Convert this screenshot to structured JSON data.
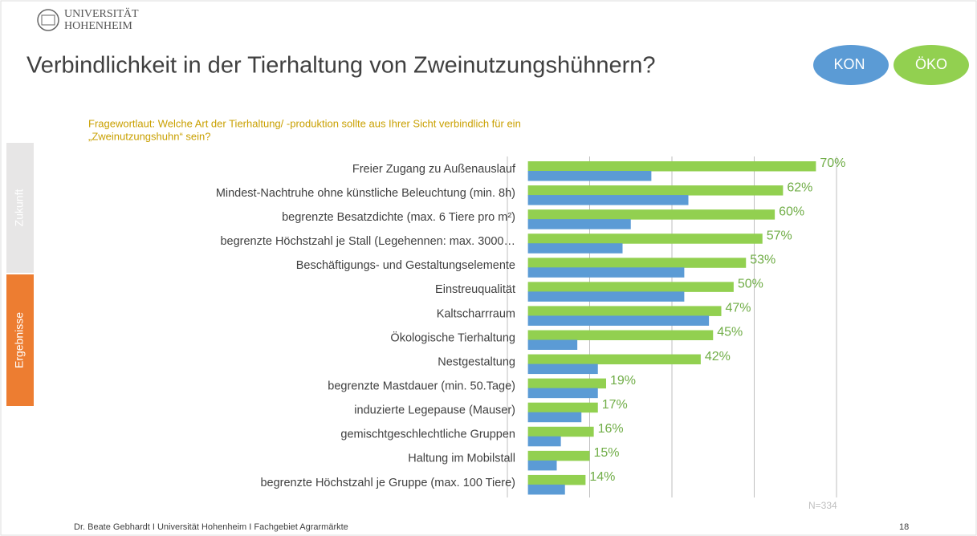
{
  "header": {
    "logo": [
      "UNIVERSITÄT",
      "HOHENHEIM"
    ]
  },
  "title": "Verbindlichkeit in der Tierhaltung von Zweinutzungshühnern?",
  "tabs": [
    "Zukunft",
    "Ergebnisse"
  ],
  "chart_data": {
    "type": "hbar",
    "subtitle": [
      "Fragewortlaut: Welche Art der Tierhaltung/ -produktion sollte aus Ihrer Sicht verbindlich für ein",
      "„Zweinutzungshuhn“ sein?"
    ],
    "categories": [
      "Freier Zugang zu Außenauslauf",
      "Mindest-Nachtruhe ohne künstliche Beleuchtung (min. 8h)",
      "begrenzte Besatzdichte (max. 6 Tiere pro m²)",
      "begrenzte Höchstzahl je Stall (Legehennen: max. 3000…",
      "Beschäftigungs- und Gestaltungselemente",
      "Einstreuqualität",
      "Kaltscharrraum",
      "Ökologische Tierhaltung",
      "Nestgestaltung",
      "begrenzte Mastdauer (min. 50.Tage)",
      "induzierte Legepause (Mauser)",
      "gemischtgeschlechtliche Gruppen",
      "Haltung im Mobilstall",
      "begrenzte Höchstzahl je Gruppe (max. 100 Tiere)"
    ],
    "series": [
      {
        "name": "ÖKO",
        "color": "#92d050",
        "values": [
          70,
          62,
          60,
          57,
          53,
          50,
          47,
          45,
          42,
          19,
          17,
          16,
          15,
          14
        ],
        "value_labels": [
          "70%",
          "62%",
          "60%",
          "57%",
          "53%",
          "50%",
          "47%",
          "45%",
          "42%",
          "19%",
          "17%",
          "16%",
          "15%",
          "14%"
        ]
      },
      {
        "name": "KON",
        "color": "#5b9bd5",
        "values": [
          30,
          39,
          25,
          23,
          38,
          38,
          44,
          12,
          17,
          17,
          13,
          8,
          7,
          9
        ]
      }
    ],
    "xlim": [
      -5,
      75
    ],
    "xticks": [
      -5,
      15,
      35,
      55,
      75
    ],
    "grid": true,
    "note": "N=334"
  },
  "footer": {
    "text": "Dr. Beate Gebhardt I Universität Hohenheim I Fachgebiet Agrarmärkte",
    "page": "18"
  }
}
